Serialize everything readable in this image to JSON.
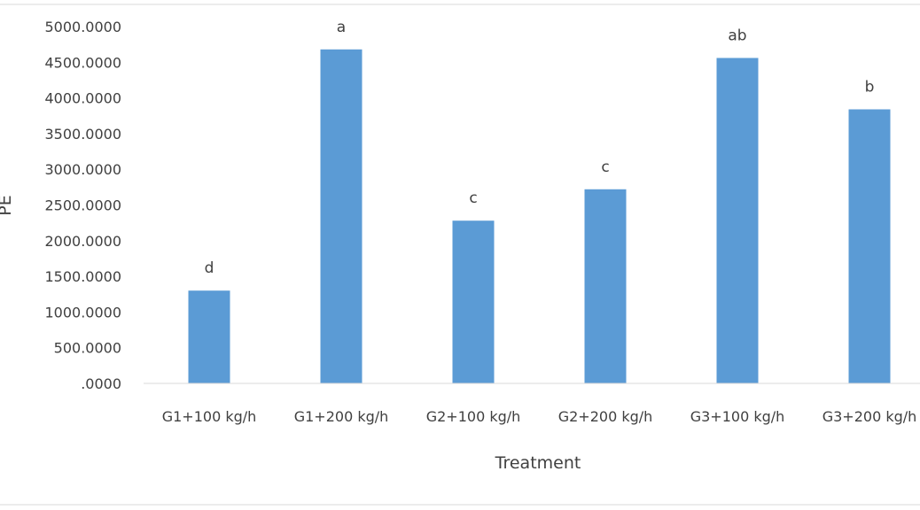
{
  "chart_data": {
    "type": "bar",
    "categories": [
      "G1+100 kg/h",
      "G1+200 kg/h",
      "G2+100 kg/h",
      "G2+200 kg/h",
      "G3+100 kg/h",
      "G3+200 kg/h"
    ],
    "values": [
      1300,
      4680,
      2280,
      2720,
      4560,
      3840
    ],
    "bar_labels": [
      "d",
      "a",
      "c",
      "c",
      "ab",
      "b"
    ],
    "xlabel": "Treatment",
    "ylabel": "PE",
    "ylim": [
      0,
      5000
    ],
    "yticks": [
      ".0000",
      "500.0000",
      "1000.0000",
      "1500.0000",
      "2000.0000",
      "2500.0000",
      "3000.0000",
      "3500.0000",
      "4000.0000",
      "4500.0000",
      "5000.0000"
    ],
    "bar_color": "#5b9bd5",
    "grid": false,
    "legend": "none"
  }
}
